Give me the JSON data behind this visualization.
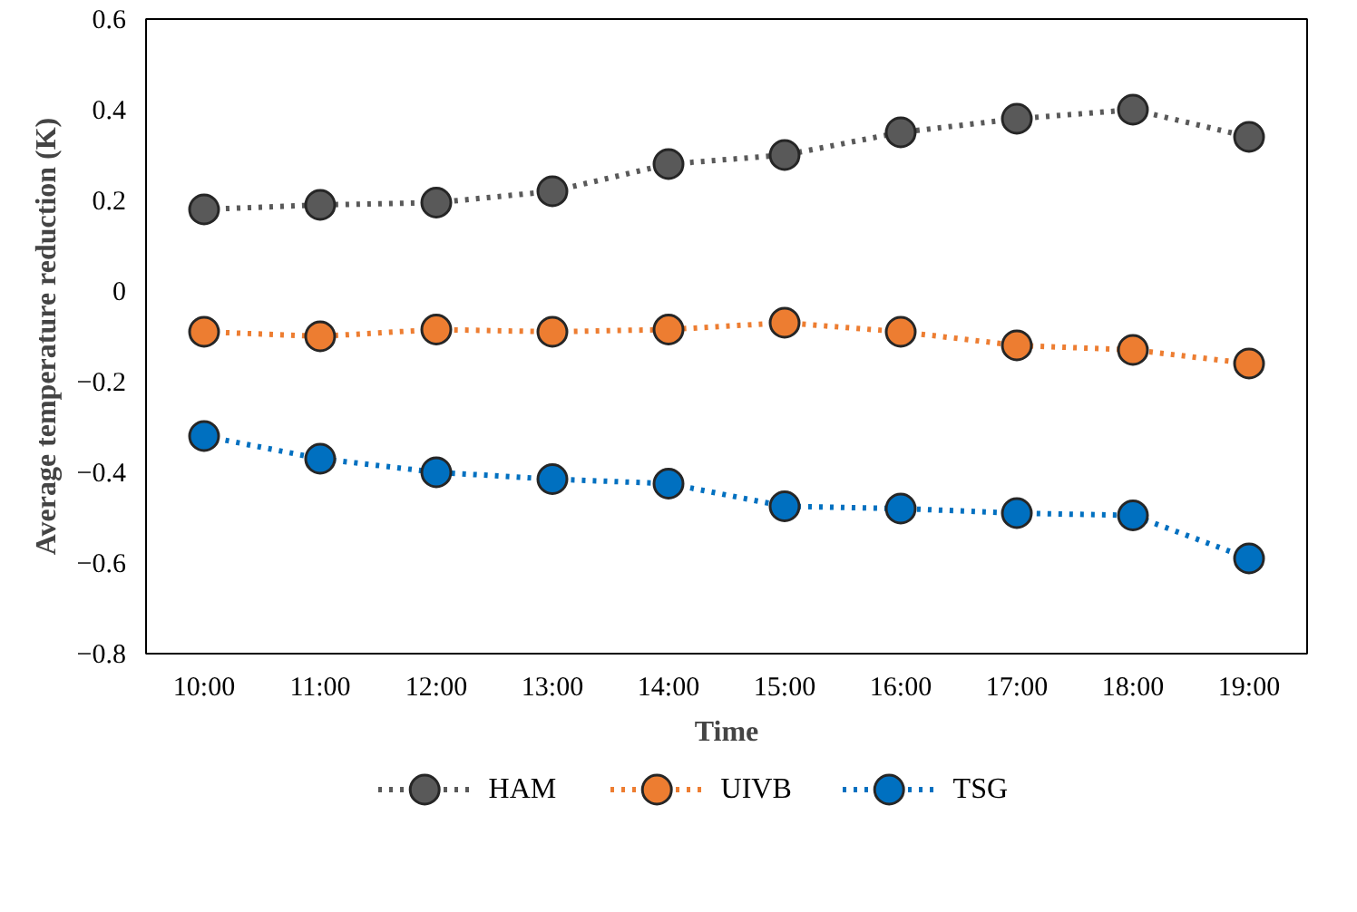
{
  "chart_data": {
    "type": "line",
    "xlabel": "Time",
    "ylabel": "Average temperature reduction (K)",
    "categories": [
      "10:00",
      "11:00",
      "12:00",
      "13:00",
      "14:00",
      "15:00",
      "16:00",
      "17:00",
      "18:00",
      "19:00"
    ],
    "series": [
      {
        "name": "HAM",
        "color": "#595959",
        "values": [
          0.18,
          0.19,
          0.195,
          0.22,
          0.28,
          0.3,
          0.35,
          0.38,
          0.4,
          0.34
        ]
      },
      {
        "name": "UIVB",
        "color": "#ed7d31",
        "values": [
          -0.09,
          -0.1,
          -0.085,
          -0.09,
          -0.085,
          -0.07,
          -0.09,
          -0.12,
          -0.13,
          -0.16
        ]
      },
      {
        "name": "TSG",
        "color": "#0070c0",
        "values": [
          -0.32,
          -0.37,
          -0.4,
          -0.415,
          -0.425,
          -0.475,
          -0.48,
          -0.49,
          -0.495,
          -0.59
        ]
      }
    ],
    "ylim": [
      -0.8,
      0.6
    ],
    "yticks": [
      {
        "value": -0.8,
        "label": "−0.8"
      },
      {
        "value": -0.6,
        "label": "−0.6"
      },
      {
        "value": -0.4,
        "label": "−0.4"
      },
      {
        "value": -0.2,
        "label": "−0.2"
      },
      0,
      0.2,
      0.4,
      0.6
    ],
    "grid": false,
    "legend": "bottom",
    "marker": "circle",
    "line_style": "dotted"
  }
}
